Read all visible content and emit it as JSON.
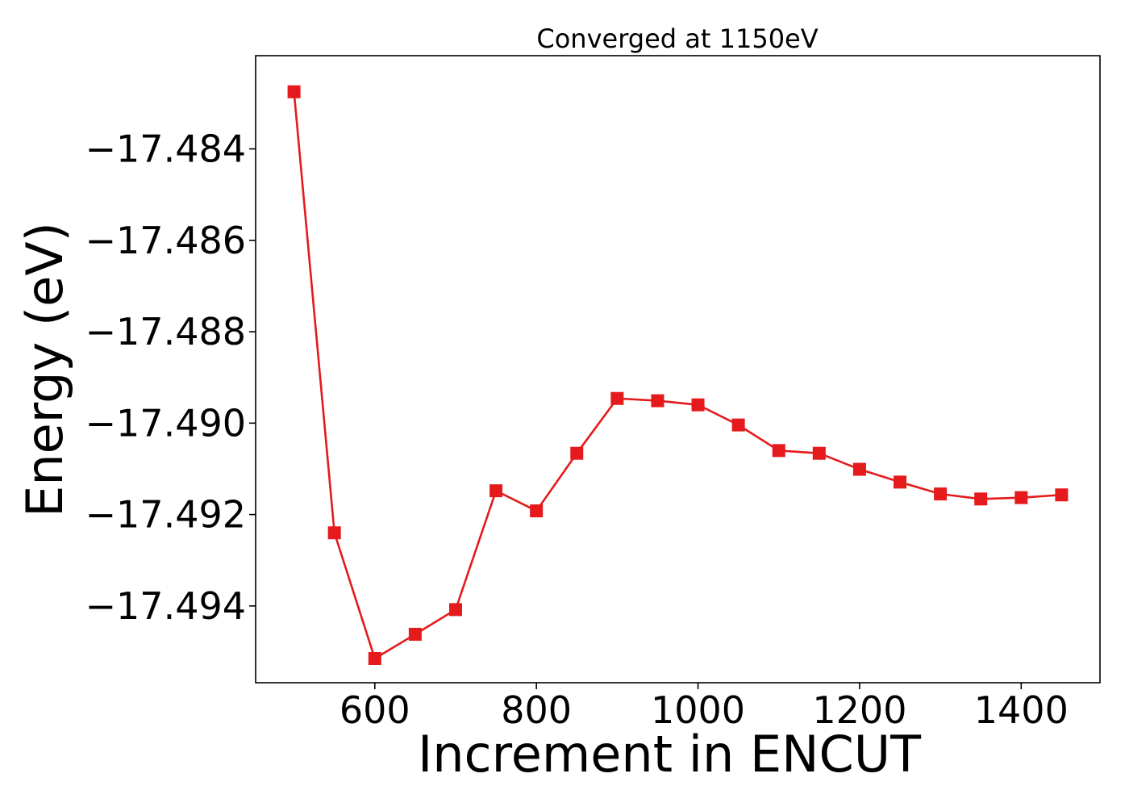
{
  "chart_data": {
    "type": "line",
    "title": "Converged at 1150eV",
    "xlabel": "Increment in ENCUT",
    "ylabel": "Energy (eV)",
    "xlim": [
      452.5,
      1497.5
    ],
    "ylim": [
      -17.49568,
      -17.48196
    ],
    "xticks": [
      600,
      800,
      1000,
      1200,
      1400
    ],
    "xtick_labels": [
      "600",
      "800",
      "1000",
      "1200",
      "1400"
    ],
    "yticks": [
      -17.494,
      -17.492,
      -17.49,
      -17.488,
      -17.486,
      -17.484
    ],
    "ytick_labels": [
      "−17.494",
      "−17.492",
      "−17.490",
      "−17.488",
      "−17.486",
      "−17.484"
    ],
    "grid": false,
    "legend": false,
    "series": [
      {
        "color": "#e41a1c",
        "marker": "square",
        "x": [
          500,
          550,
          600,
          650,
          700,
          750,
          800,
          850,
          900,
          950,
          1000,
          1050,
          1100,
          1150,
          1200,
          1250,
          1300,
          1350,
          1400,
          1450
        ],
        "y": [
          -17.48275,
          -17.4924,
          -17.49515,
          -17.49462,
          -17.49408,
          -17.49148,
          -17.49192,
          -17.49066,
          -17.48946,
          -17.48951,
          -17.4896,
          -17.49004,
          -17.4906,
          -17.49066,
          -17.49101,
          -17.49129,
          -17.49155,
          -17.49166,
          -17.49163,
          -17.49157
        ]
      }
    ]
  }
}
